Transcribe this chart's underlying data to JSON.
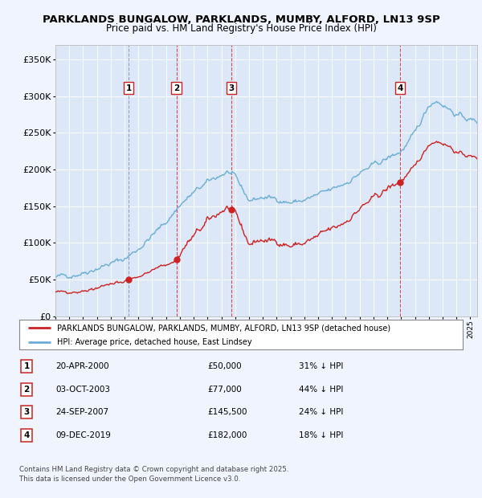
{
  "title_line1": "PARKLANDS BUNGALOW, PARKLANDS, MUMBY, ALFORD, LN13 9SP",
  "title_line2": "Price paid vs. HM Land Registry's House Price Index (HPI)",
  "background_color": "#f0f4ff",
  "plot_bg_color": "#dce8f8",
  "ylim": [
    0,
    370000
  ],
  "yticks": [
    0,
    50000,
    100000,
    150000,
    200000,
    250000,
    300000,
    350000
  ],
  "ytick_labels": [
    "£0",
    "£50K",
    "£100K",
    "£150K",
    "£200K",
    "£250K",
    "£300K",
    "£350K"
  ],
  "xmin": 1995,
  "xmax": 2025.5,
  "hpi_color": "#6aaed6",
  "price_color": "#cc2222",
  "vline_color": "#cc2222",
  "vline1_color": "#aaaacc",
  "legend_label_price": "PARKLANDS BUNGALOW, PARKLANDS, MUMBY, ALFORD, LN13 9SP (detached house)",
  "legend_label_hpi": "HPI: Average price, detached house, East Lindsey",
  "sales": [
    {
      "num": 1,
      "date": "20-APR-2000",
      "price": 50000,
      "pct": "31%",
      "x": 2000.3
    },
    {
      "num": 2,
      "date": "03-OCT-2003",
      "price": 77000,
      "pct": "44%",
      "x": 2003.75
    },
    {
      "num": 3,
      "date": "24-SEP-2007",
      "price": 145500,
      "pct": "24%",
      "x": 2007.72
    },
    {
      "num": 4,
      "date": "09-DEC-2019",
      "price": 182000,
      "pct": "18%",
      "x": 2019.93
    }
  ],
  "footer": "Contains HM Land Registry data © Crown copyright and database right 2025.\nThis data is licensed under the Open Government Licence v3.0."
}
